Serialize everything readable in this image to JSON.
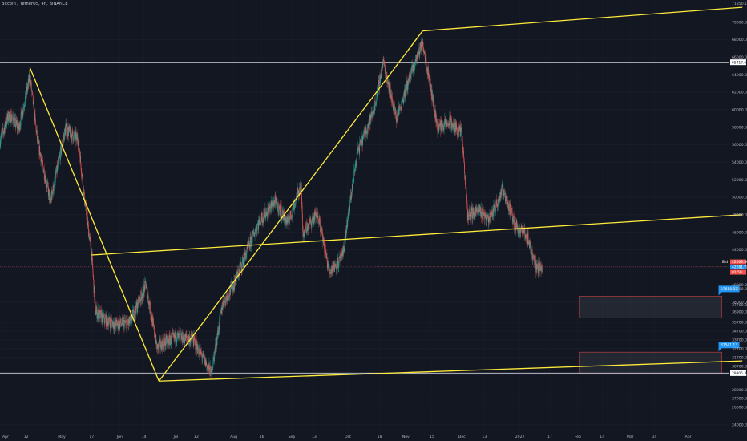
{
  "header": {
    "symbol": "Bitcoin / TetherUS, 4h, BINANCE"
  },
  "colors": {
    "background": "#131722",
    "up": "#26a69a",
    "down": "#ef5350",
    "trendline": "#ffeb3b",
    "hline": "#d1d4dc",
    "zone_border": "#b23b3b",
    "callout": "#2196f3",
    "current_price_line": "#ef5350"
  },
  "chart_data": {
    "type": "candlestick",
    "title": "",
    "xlabel": "",
    "ylabel": "",
    "ylim": [
      23800,
      71800
    ],
    "y_ticks": [
      24000,
      26000,
      27000,
      28000,
      29700,
      30700,
      31700,
      32700,
      33700,
      34700,
      35700,
      36900,
      37700,
      38000,
      39500,
      40000,
      42000,
      44000,
      46000,
      48000,
      50000,
      52000,
      54000,
      56000,
      58000,
      60000,
      62000,
      64000,
      66000,
      68000,
      70000
    ],
    "y_tick_labels": [
      "24000.00",
      "26000.00",
      "27000.00",
      "28000.00",
      "29700.00",
      "30700.00",
      "31700.00",
      "32700.00",
      "33700.00",
      "34700.00",
      "35700.00",
      "36900.00",
      "37700.00",
      "38000.00",
      "39500.00",
      "40000.00",
      "42000.00",
      "44000.00",
      "46000.00",
      "48000.00",
      "50000.00",
      "52000.00",
      "54000.00",
      "56000.00",
      "58000.00",
      "60000.00",
      "62000.00",
      "64000.00",
      "66000.00",
      "68000.00",
      "70000.00"
    ],
    "y_top_label": "71350.17",
    "x_tick_labels": [
      "Apr",
      "12",
      "May",
      "17",
      "Jun",
      "14",
      "Jul",
      "12",
      "Aug",
      "16",
      "Sep",
      "13",
      "Oct",
      "18",
      "Nov",
      "15",
      "Dec",
      "13",
      "2022",
      "17",
      "Feb",
      "14",
      "Mar",
      "14",
      "Apr"
    ],
    "x_start": "2021-03-29",
    "x_tick_dates": [
      "2021-04-01",
      "2021-04-12",
      "2021-05-01",
      "2021-05-17",
      "2021-06-01",
      "2021-06-14",
      "2021-07-01",
      "2021-07-12",
      "2021-08-01",
      "2021-08-16",
      "2021-09-01",
      "2021-09-13",
      "2021-10-01",
      "2021-10-18",
      "2021-11-01",
      "2021-11-15",
      "2021-12-01",
      "2021-12-13",
      "2022-01-01",
      "2022-01-17",
      "2022-02-01",
      "2022-02-14",
      "2022-03-01",
      "2022-03-14",
      "2022-04-01"
    ],
    "anchor_prices": [
      {
        "date": "2021-03-29",
        "price": 56500
      },
      {
        "date": "2021-04-03",
        "price": 59500
      },
      {
        "date": "2021-04-08",
        "price": 57800
      },
      {
        "date": "2021-04-14",
        "price": 63800
      },
      {
        "date": "2021-04-18",
        "price": 56500
      },
      {
        "date": "2021-04-25",
        "price": 49500
      },
      {
        "date": "2021-05-03",
        "price": 57800
      },
      {
        "date": "2021-05-10",
        "price": 56500
      },
      {
        "date": "2021-05-13",
        "price": 50000
      },
      {
        "date": "2021-05-17",
        "price": 43500
      },
      {
        "date": "2021-05-19",
        "price": 37000
      },
      {
        "date": "2021-05-24",
        "price": 36000
      },
      {
        "date": "2021-05-30",
        "price": 35500
      },
      {
        "date": "2021-06-06",
        "price": 35600
      },
      {
        "date": "2021-06-10",
        "price": 37400
      },
      {
        "date": "2021-06-15",
        "price": 40000
      },
      {
        "date": "2021-06-21",
        "price": 32800
      },
      {
        "date": "2021-06-24",
        "price": 33300
      },
      {
        "date": "2021-07-01",
        "price": 34000
      },
      {
        "date": "2021-07-10",
        "price": 33800
      },
      {
        "date": "2021-07-20",
        "price": 29900
      },
      {
        "date": "2021-07-26",
        "price": 37800
      },
      {
        "date": "2021-08-01",
        "price": 40000
      },
      {
        "date": "2021-08-14",
        "price": 47000
      },
      {
        "date": "2021-08-23",
        "price": 49500
      },
      {
        "date": "2021-08-30",
        "price": 47000
      },
      {
        "date": "2021-09-06",
        "price": 51500
      },
      {
        "date": "2021-09-07",
        "price": 46000
      },
      {
        "date": "2021-09-15",
        "price": 48200
      },
      {
        "date": "2021-09-21",
        "price": 41500
      },
      {
        "date": "2021-09-28",
        "price": 43000
      },
      {
        "date": "2021-10-06",
        "price": 55000
      },
      {
        "date": "2021-10-15",
        "price": 60000
      },
      {
        "date": "2021-10-20",
        "price": 65500
      },
      {
        "date": "2021-10-27",
        "price": 59000
      },
      {
        "date": "2021-11-02",
        "price": 63000
      },
      {
        "date": "2021-11-10",
        "price": 67800
      },
      {
        "date": "2021-11-18",
        "price": 58000
      },
      {
        "date": "2021-11-25",
        "price": 58500
      },
      {
        "date": "2021-12-01",
        "price": 57200
      },
      {
        "date": "2021-12-04",
        "price": 48000
      },
      {
        "date": "2021-12-10",
        "price": 48500
      },
      {
        "date": "2021-12-16",
        "price": 47500
      },
      {
        "date": "2021-12-23",
        "price": 51000
      },
      {
        "date": "2021-12-29",
        "price": 47000
      },
      {
        "date": "2022-01-05",
        "price": 45500
      },
      {
        "date": "2022-01-10",
        "price": 41800
      },
      {
        "date": "2022-01-13",
        "price": 42200
      }
    ],
    "horizontal_lines": [
      {
        "price": 65417.68,
        "label": "65417.68"
      },
      {
        "price": 29905.37,
        "label": "29905.37"
      }
    ],
    "current_price": {
      "price": 42069.56,
      "label": "42069.56",
      "tag": "Bid"
    },
    "last_price_tags": [
      "42069.56",
      "42281.71",
      "01:59"
    ],
    "trendlines": [
      {
        "from": {
          "date": "2021-04-14",
          "price": 64800
        },
        "to": {
          "date": "2021-06-22",
          "price": 29000
        }
      },
      {
        "from": {
          "date": "2021-06-22",
          "price": 29000
        },
        "to": {
          "date": "2021-11-10",
          "price": 69000
        }
      },
      {
        "from": {
          "date": "2021-11-10",
          "price": 69000
        },
        "to": {
          "date": "2022-04-30",
          "price": 71700
        }
      },
      {
        "from": {
          "date": "2021-05-17",
          "price": 43400
        },
        "to": {
          "date": "2022-04-30",
          "price": 48000
        }
      },
      {
        "from": {
          "date": "2021-06-22",
          "price": 29000
        },
        "to": {
          "date": "2022-04-30",
          "price": 31300
        }
      }
    ],
    "zones": [
      {
        "from": "2022-02-02",
        "to": "2022-04-19",
        "low": 36200,
        "high": 38700,
        "label": "37810.07"
      },
      {
        "from": "2022-02-02",
        "to": "2022-04-19",
        "low": 29900,
        "high": 32300,
        "label": "31541.13"
      }
    ]
  }
}
